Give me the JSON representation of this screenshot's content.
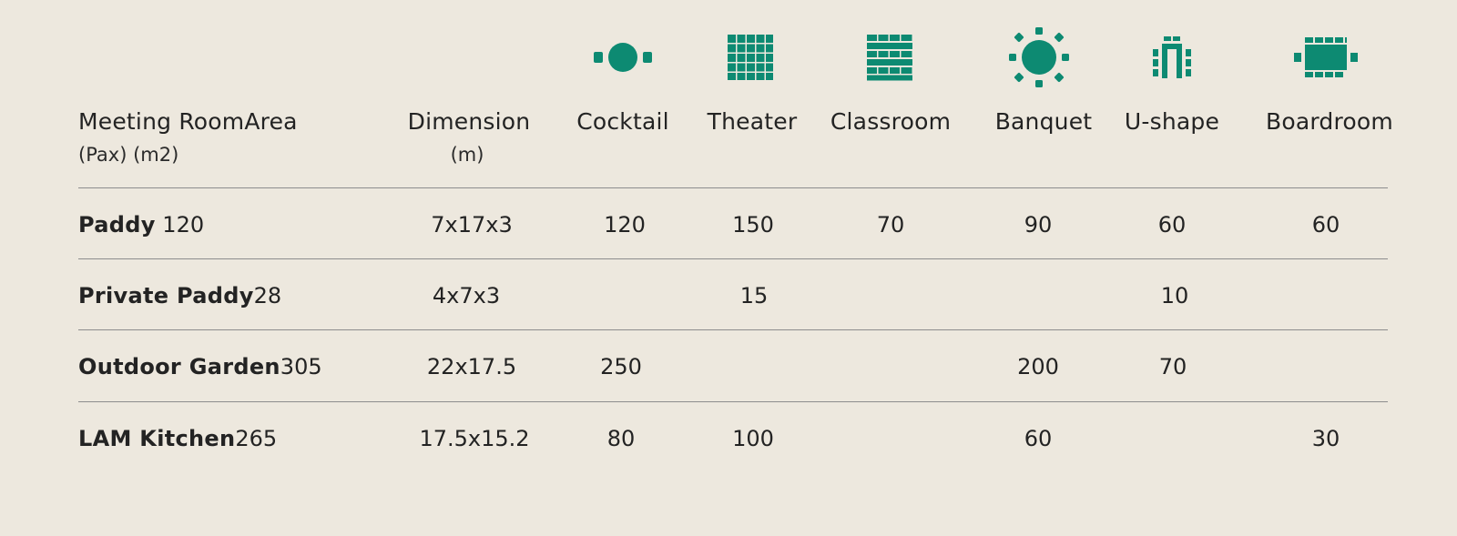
{
  "header": {
    "room_line1": "Meeting RoomArea",
    "room_line2": "(Pax) (m2)",
    "dimension_line1": "Dimension",
    "dimension_line2": "(m)",
    "cocktail": "Cocktail",
    "theater": "Theater",
    "classroom": "Classroom",
    "banquet": "Banquet",
    "ushape": "U-shape",
    "boardroom": "Boardroom"
  },
  "icons": {
    "color": "#0d8a72",
    "names": [
      "cocktail-table-icon",
      "theater-seating-icon",
      "classroom-seating-icon",
      "banquet-round-table-icon",
      "u-shape-seating-icon",
      "boardroom-table-icon"
    ]
  },
  "rows": [
    {
      "name": "Paddy",
      "area": "120",
      "dimension": "7x17x3",
      "cocktail": "120",
      "theater": "150",
      "classroom": "70",
      "banquet": "90",
      "ushape": "60",
      "boardroom": "60"
    },
    {
      "name": "Private Paddy",
      "area": "28",
      "dimension": "4x7x3",
      "cocktail": "",
      "theater": "15",
      "classroom": "",
      "banquet": "",
      "ushape": "10",
      "boardroom": ""
    },
    {
      "name": "Outdoor Garden",
      "area": "305",
      "dimension": "22x17.5",
      "cocktail": "250",
      "theater": "",
      "classroom": "",
      "banquet": "200",
      "ushape": "70",
      "boardroom": ""
    },
    {
      "name": "LAM Kitchen",
      "area": "265",
      "dimension": "17.5x15.2",
      "cocktail": "80",
      "theater": "100",
      "classroom": "",
      "banquet": "60",
      "ushape": "",
      "boardroom": "30"
    }
  ]
}
